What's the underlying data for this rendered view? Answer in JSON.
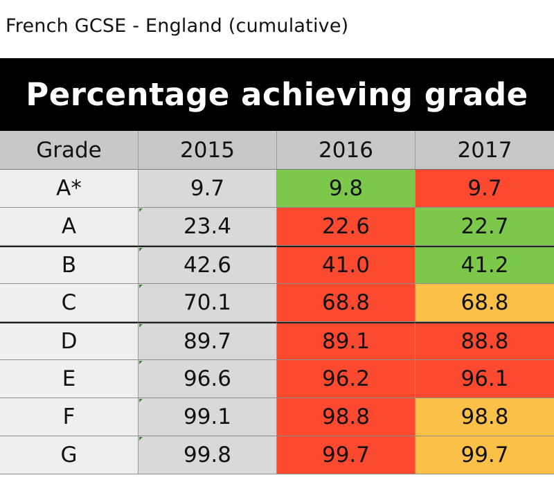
{
  "page_title": "French GCSE - England (cumulative)",
  "header": "Percentage achieving grade",
  "colors": {
    "green": "#7cc84a",
    "red": "#fc4a30",
    "amber": "#fbc048",
    "header_bg": "#000000",
    "column_header_bg": "#c8c8c8"
  },
  "chart_data": {
    "type": "table",
    "columns": [
      "Grade",
      "2015",
      "2016",
      "2017"
    ],
    "rows": [
      {
        "grade": "A*",
        "values": [
          "9.7",
          "9.8",
          "9.7"
        ],
        "status": [
          "none",
          "green",
          "red"
        ]
      },
      {
        "grade": "A",
        "values": [
          "23.4",
          "22.6",
          "22.7"
        ],
        "status": [
          "none",
          "red",
          "green"
        ]
      },
      {
        "grade": "B",
        "values": [
          "42.6",
          "41.0",
          "41.2"
        ],
        "status": [
          "none",
          "red",
          "green"
        ]
      },
      {
        "grade": "C",
        "values": [
          "70.1",
          "68.8",
          "68.8"
        ],
        "status": [
          "none",
          "red",
          "amber"
        ]
      },
      {
        "grade": "D",
        "values": [
          "89.7",
          "89.1",
          "88.8"
        ],
        "status": [
          "none",
          "red",
          "red"
        ]
      },
      {
        "grade": "E",
        "values": [
          "96.6",
          "96.2",
          "96.1"
        ],
        "status": [
          "none",
          "red",
          "red"
        ]
      },
      {
        "grade": "F",
        "values": [
          "99.1",
          "98.8",
          "98.8"
        ],
        "status": [
          "none",
          "red",
          "amber"
        ]
      },
      {
        "grade": "G",
        "values": [
          "99.8",
          "99.7",
          "99.7"
        ],
        "status": [
          "none",
          "red",
          "amber"
        ]
      }
    ]
  }
}
